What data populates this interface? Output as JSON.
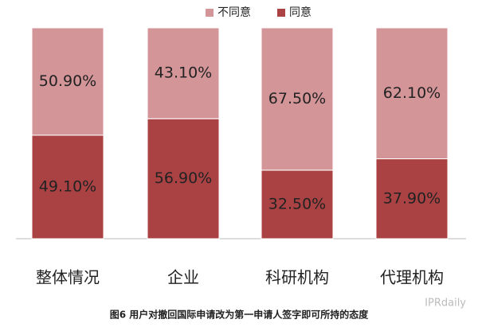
{
  "chart_data": {
    "type": "stacked_bar",
    "categories": [
      "整体情况",
      "企业",
      "科研机构",
      "代理机构"
    ],
    "series": [
      {
        "name": "同意",
        "color": "#aa4244",
        "values": [
          49.1,
          56.9,
          32.5,
          37.9
        ],
        "value_labels": [
          "49.10%",
          "56.90%",
          "32.50%",
          "37.90%"
        ]
      },
      {
        "name": "不同意",
        "color": "#d49599",
        "values": [
          50.9,
          43.1,
          67.5,
          62.1
        ],
        "value_labels": [
          "50.90%",
          "43.10%",
          "67.50%",
          "62.10%"
        ]
      }
    ],
    "ylim": [
      0,
      100
    ],
    "caption": "图6 用户对撤回国际申请改为第一申请人签字即可所持的态度",
    "watermark": "IPRdaily"
  }
}
